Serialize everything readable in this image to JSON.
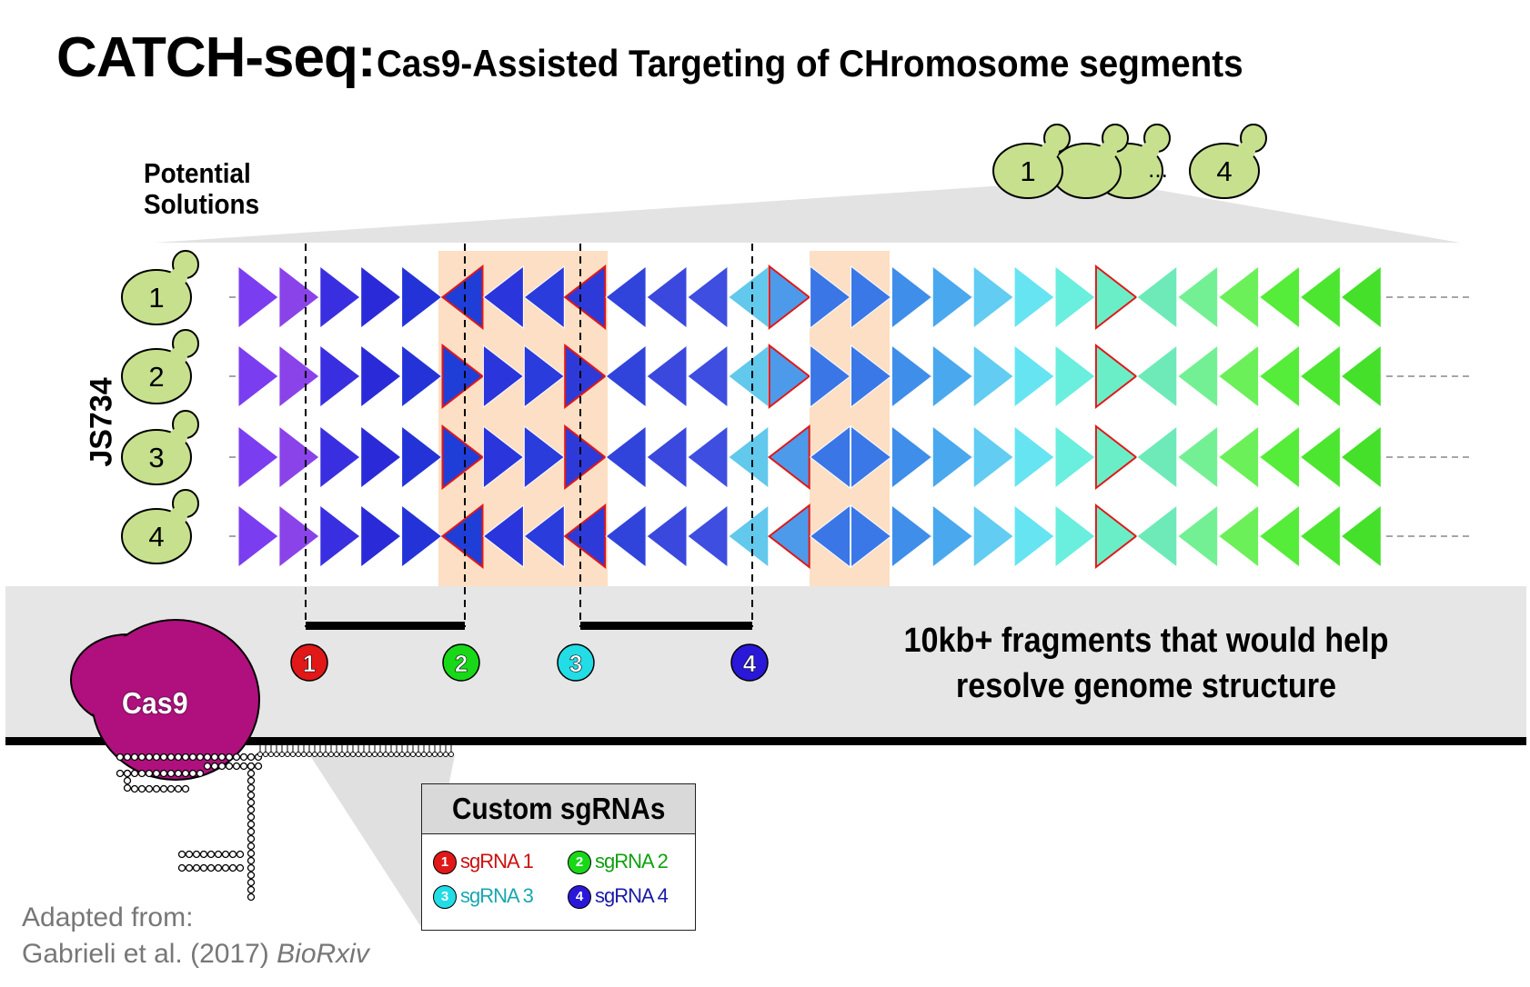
{
  "title": {
    "main": "CATCH-seq:",
    "sub": "Cas9-Assisted Targeting of CHromosome segments"
  },
  "solutions_label": {
    "line1": "Potential",
    "line2": "Solutions"
  },
  "strain_label": "JS734",
  "top_cells": {
    "first": "1",
    "ellipsis": "...",
    "last": "4"
  },
  "rows": [
    {
      "label": "1",
      "dirs": "RRRRRLLLLLLLLRRRRRRRRRLLLLLL"
    },
    {
      "label": "2",
      "dirs": "RRRRRRRRRLLLLRRRRRRRRRLLLLLL"
    },
    {
      "label": "3",
      "dirs": "RRRRRRRRRLLLLLLRRRRRRRLLLLLL"
    },
    {
      "label": "4",
      "dirs": "RRRRRLLLLLLLLLLRRRRRRRLLLLLL"
    }
  ],
  "row_palette": [
    "#7b3df0",
    "#8a43e8",
    "#3a2fe0",
    "#2a2ad8",
    "#2433d8",
    "#1f3ed8",
    "#2a36dc",
    "#2a3cdc",
    "#2e3ad8",
    "#3044dc",
    "#3a48de",
    "#3e4ee0",
    "#62c8ec",
    "#4e9aea",
    "#3a76e6",
    "#3a78e8",
    "#3e8eea",
    "#4aa8ee",
    "#62ccf2",
    "#66e4f2",
    "#6aeede",
    "#6aeec8",
    "#6eeab8",
    "#74f094",
    "#6cf05a",
    "#56ec3a",
    "#4ce630",
    "#44e02a"
  ],
  "sgrnas": [
    {
      "label": "1",
      "name": "sgRNA 1",
      "color": "#e01818",
      "text_color": "#cc1010"
    },
    {
      "label": "2",
      "name": "sgRNA 2",
      "color": "#18d818",
      "text_color": "#10a010"
    },
    {
      "label": "3",
      "name": "sgRNA 3",
      "color": "#22dce6",
      "text_color": "#1aa6b0"
    },
    {
      "label": "4",
      "name": "sgRNA 4",
      "color": "#2a18d8",
      "text_color": "#1a1aa8"
    }
  ],
  "fragments_text": {
    "line1": "10kb+ fragments that would help",
    "line2": "resolve genome structure"
  },
  "cas9_label": "Cas9",
  "legend_title": "Custom sgRNAs",
  "credit": {
    "line1": "Adapted from:",
    "line2_plain": "Gabrieli et al. (2017) ",
    "line2_italic": "BioRxiv"
  },
  "colors": {
    "yeast_fill": "#c7e08e",
    "cas9": "#b0107e",
    "highlight": "#fcdfc4",
    "band": "#e6e6e6",
    "red_edge": "#e01818"
  }
}
